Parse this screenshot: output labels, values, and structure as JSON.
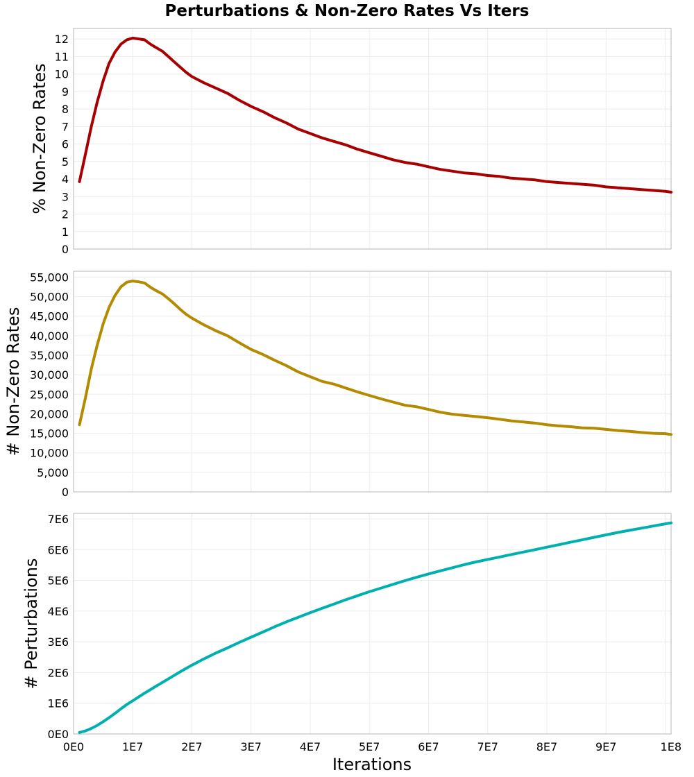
{
  "figure": {
    "title": "Perturbations & Non-Zero Rates Vs Iters",
    "xlabel": "Iterations",
    "x_ticks": [
      0,
      10000000,
      20000000,
      30000000,
      40000000,
      50000000,
      60000000,
      70000000,
      80000000,
      90000000,
      100000000
    ],
    "x_tick_labels": [
      "0E0",
      "1E7",
      "2E7",
      "3E7",
      "4E7",
      "5E7",
      "6E7",
      "7E7",
      "8E7",
      "9E7",
      "1E8"
    ],
    "xlim": [
      0,
      101000000
    ]
  },
  "chart_data": [
    {
      "type": "line",
      "name": "pct-nonzero",
      "title": "Perturbations & Non-Zero Rates Vs Iters",
      "xlabel": "Iterations",
      "ylabel": "% Non-Zero Rates",
      "ylim": [
        0,
        12.6
      ],
      "grid": true,
      "color": "#a80000",
      "y_ticks": [
        0,
        1,
        2,
        3,
        4,
        5,
        6,
        7,
        8,
        9,
        10,
        11,
        12
      ],
      "y_tick_labels": [
        "0",
        "1",
        "2",
        "3",
        "4",
        "5",
        "6",
        "7",
        "8",
        "9",
        "10",
        "11",
        "12"
      ],
      "series": [
        {
          "name": "% Non-Zero Rates",
          "x": [
            1000000,
            2000000,
            3000000,
            4000000,
            5000000,
            6000000,
            7000000,
            8000000,
            9000000,
            10000000,
            11000000,
            12000000,
            13000000,
            14000000,
            15000000,
            16000000,
            17000000,
            18000000,
            19000000,
            20000000,
            22000000,
            24000000,
            26000000,
            28000000,
            30000000,
            32000000,
            34000000,
            36000000,
            38000000,
            40000000,
            42000000,
            44000000,
            46000000,
            48000000,
            50000000,
            52000000,
            54000000,
            56000000,
            58000000,
            60000000,
            62000000,
            64000000,
            66000000,
            68000000,
            70000000,
            72000000,
            74000000,
            76000000,
            78000000,
            80000000,
            82000000,
            84000000,
            86000000,
            88000000,
            90000000,
            92000000,
            94000000,
            96000000,
            98000000,
            100000000,
            101000000
          ],
          "values": [
            3.85,
            5.4,
            7.0,
            8.4,
            9.6,
            10.6,
            11.25,
            11.7,
            11.95,
            12.05,
            12.0,
            11.95,
            11.7,
            11.5,
            11.3,
            11.0,
            10.7,
            10.4,
            10.1,
            9.85,
            9.5,
            9.2,
            8.9,
            8.5,
            8.15,
            7.85,
            7.5,
            7.2,
            6.85,
            6.6,
            6.35,
            6.15,
            5.95,
            5.7,
            5.5,
            5.3,
            5.1,
            4.95,
            4.85,
            4.7,
            4.55,
            4.45,
            4.35,
            4.3,
            4.2,
            4.15,
            4.05,
            4.0,
            3.95,
            3.85,
            3.8,
            3.75,
            3.7,
            3.65,
            3.55,
            3.5,
            3.45,
            3.4,
            3.35,
            3.3,
            3.25
          ]
        }
      ]
    },
    {
      "type": "line",
      "name": "count-nonzero",
      "title": "Perturbations & Non-Zero Rates Vs Iters",
      "xlabel": "Iterations",
      "ylabel": "# Non-Zero Rates",
      "ylim": [
        0,
        56500
      ],
      "grid": true,
      "color": "#b38a00",
      "y_ticks": [
        0,
        5000,
        10000,
        15000,
        20000,
        25000,
        30000,
        35000,
        40000,
        45000,
        50000,
        55000
      ],
      "y_tick_labels": [
        "0",
        "5,000",
        "10,000",
        "15,000",
        "20,000",
        "25,000",
        "30,000",
        "35,000",
        "40,000",
        "45,000",
        "50,000",
        "55,000"
      ],
      "series": [
        {
          "name": "# Non-Zero Rates",
          "x": [
            1000000,
            2000000,
            3000000,
            4000000,
            5000000,
            6000000,
            7000000,
            8000000,
            9000000,
            10000000,
            11000000,
            12000000,
            13000000,
            14000000,
            15000000,
            16000000,
            17000000,
            18000000,
            19000000,
            20000000,
            22000000,
            24000000,
            26000000,
            28000000,
            30000000,
            32000000,
            34000000,
            36000000,
            38000000,
            40000000,
            42000000,
            44000000,
            46000000,
            48000000,
            50000000,
            52000000,
            54000000,
            56000000,
            58000000,
            60000000,
            62000000,
            64000000,
            66000000,
            68000000,
            70000000,
            72000000,
            74000000,
            76000000,
            78000000,
            80000000,
            82000000,
            84000000,
            86000000,
            88000000,
            90000000,
            92000000,
            94000000,
            96000000,
            98000000,
            100000000,
            101000000
          ],
          "values": [
            17200,
            24000,
            31500,
            37600,
            43000,
            47200,
            50300,
            52500,
            53700,
            54000,
            53800,
            53500,
            52400,
            51500,
            50700,
            49500,
            48200,
            46800,
            45500,
            44500,
            42800,
            41300,
            40000,
            38200,
            36500,
            35200,
            33700,
            32300,
            30700,
            29500,
            28300,
            27600,
            26600,
            25600,
            24700,
            23800,
            23000,
            22200,
            21800,
            21100,
            20400,
            19900,
            19600,
            19300,
            19000,
            18600,
            18200,
            17900,
            17600,
            17200,
            16900,
            16700,
            16400,
            16300,
            16000,
            15700,
            15500,
            15200,
            15000,
            14900,
            14700
          ]
        }
      ]
    },
    {
      "type": "line",
      "name": "perturbations",
      "title": "Perturbations & Non-Zero Rates Vs Iters",
      "xlabel": "Iterations",
      "ylabel": "# Perturbations",
      "ylim": [
        0,
        7180000
      ],
      "grid": true,
      "color": "#00b0b0",
      "y_ticks": [
        0,
        1000000,
        2000000,
        3000000,
        4000000,
        5000000,
        6000000,
        7000000
      ],
      "y_tick_labels": [
        "0E0",
        "1E6",
        "2E6",
        "3E6",
        "4E6",
        "5E6",
        "6E6",
        "7E6"
      ],
      "series": [
        {
          "name": "# Perturbations",
          "x": [
            1000000,
            2000000,
            3000000,
            4000000,
            5000000,
            6000000,
            7000000,
            8000000,
            9000000,
            10000000,
            12000000,
            14000000,
            16000000,
            18000000,
            20000000,
            22000000,
            24000000,
            26000000,
            28000000,
            30000000,
            32000000,
            34000000,
            36000000,
            38000000,
            40000000,
            42000000,
            44000000,
            46000000,
            48000000,
            50000000,
            52000000,
            54000000,
            56000000,
            58000000,
            60000000,
            62000000,
            64000000,
            66000000,
            68000000,
            70000000,
            72000000,
            74000000,
            76000000,
            78000000,
            80000000,
            82000000,
            84000000,
            86000000,
            88000000,
            90000000,
            92000000,
            94000000,
            96000000,
            98000000,
            100000000,
            101000000
          ],
          "values": [
            50000,
            100000,
            180000,
            280000,
            400000,
            530000,
            670000,
            820000,
            960000,
            1080000,
            1330000,
            1560000,
            1790000,
            2020000,
            2240000,
            2440000,
            2630000,
            2800000,
            2980000,
            3150000,
            3320000,
            3490000,
            3650000,
            3800000,
            3950000,
            4090000,
            4230000,
            4370000,
            4500000,
            4630000,
            4750000,
            4870000,
            4990000,
            5100000,
            5210000,
            5310000,
            5410000,
            5510000,
            5600000,
            5680000,
            5760000,
            5840000,
            5920000,
            6000000,
            6080000,
            6160000,
            6240000,
            6320000,
            6400000,
            6480000,
            6560000,
            6630000,
            6700000,
            6770000,
            6840000,
            6870000
          ]
        }
      ]
    }
  ]
}
